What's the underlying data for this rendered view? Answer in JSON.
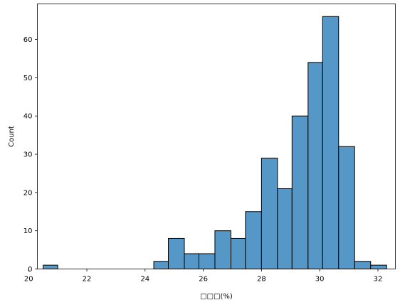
{
  "chart_data": {
    "type": "bar",
    "subtype": "histogram",
    "xlabel": "□□□(%)",
    "ylabel": "Count",
    "xlim": [
      20.3,
      32.6
    ],
    "ylim": [
      0,
      69.3
    ],
    "xticks": [
      20,
      22,
      24,
      26,
      28,
      30,
      32
    ],
    "yticks": [
      0,
      10,
      20,
      30,
      40,
      50,
      60
    ],
    "grid": false,
    "bar_color": "#5597c6",
    "bins": [
      {
        "x0": 20.5,
        "x1": 21.0,
        "count": 1
      },
      {
        "x0": 21.0,
        "x1": 21.5,
        "count": 0
      },
      {
        "x0": 21.5,
        "x1": 22.0,
        "count": 0
      },
      {
        "x0": 22.0,
        "x1": 22.5,
        "count": 0
      },
      {
        "x0": 22.5,
        "x1": 23.0,
        "count": 0
      },
      {
        "x0": 23.0,
        "x1": 23.5,
        "count": 0
      },
      {
        "x0": 23.5,
        "x1": 24.0,
        "count": 0
      },
      {
        "x0": 24.0,
        "x1": 24.3,
        "count": 0
      },
      {
        "x0": 24.3,
        "x1": 24.8,
        "count": 2
      },
      {
        "x0": 24.8,
        "x1": 25.35,
        "count": 8
      },
      {
        "x0": 25.35,
        "x1": 25.85,
        "count": 4
      },
      {
        "x0": 25.85,
        "x1": 26.4,
        "count": 4
      },
      {
        "x0": 26.4,
        "x1": 26.95,
        "count": 10
      },
      {
        "x0": 26.95,
        "x1": 27.45,
        "count": 8
      },
      {
        "x0": 27.45,
        "x1": 28.0,
        "count": 15
      },
      {
        "x0": 28.0,
        "x1": 28.55,
        "count": 29
      },
      {
        "x0": 28.55,
        "x1": 29.05,
        "count": 21
      },
      {
        "x0": 29.05,
        "x1": 29.6,
        "count": 40
      },
      {
        "x0": 29.6,
        "x1": 30.1,
        "count": 54
      },
      {
        "x0": 30.1,
        "x1": 30.65,
        "count": 66
      },
      {
        "x0": 30.65,
        "x1": 31.2,
        "count": 32
      },
      {
        "x0": 31.2,
        "x1": 31.75,
        "count": 2
      },
      {
        "x0": 31.75,
        "x1": 32.3,
        "count": 1
      }
    ]
  }
}
